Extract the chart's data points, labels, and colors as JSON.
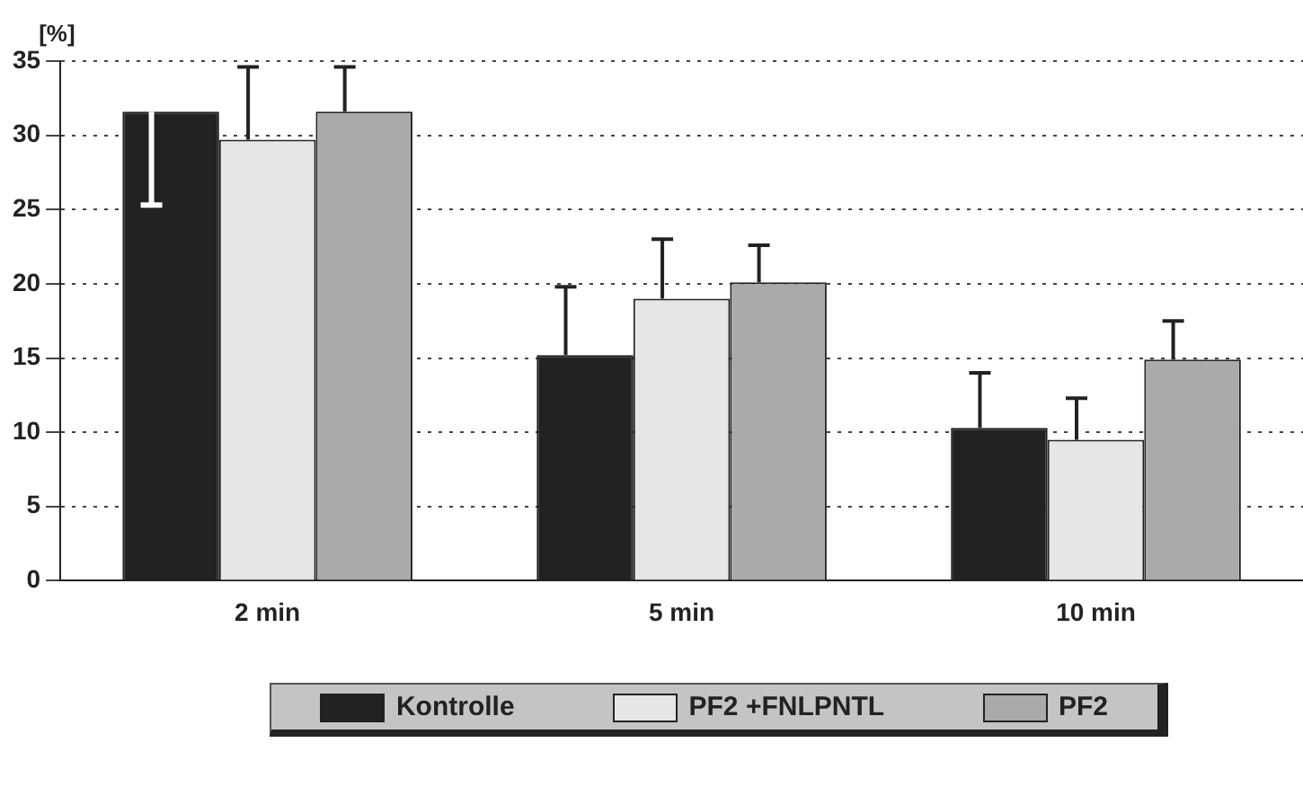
{
  "chart_data": {
    "type": "bar",
    "ylabel": "[%]",
    "categories": [
      "2 min",
      "5 min",
      "10 min"
    ],
    "series": [
      {
        "name": "Kontrolle",
        "color": "#222222",
        "values": [
          31.6,
          15.2,
          10.3
        ],
        "errors": [
          [
            25.3,
            31.6
          ],
          [
            15.2,
            19.8
          ],
          [
            10.3,
            14.0
          ]
        ]
      },
      {
        "name": "PF2 +FNLPNTL",
        "color": "#e6e6e6",
        "values": [
          29.7,
          19.0,
          9.5
        ],
        "errors": [
          [
            29.7,
            34.6
          ],
          [
            19.0,
            23.0
          ],
          [
            9.5,
            12.3
          ]
        ]
      },
      {
        "name": "PF2",
        "color": "#aaaaaa",
        "values": [
          31.6,
          20.1,
          14.9
        ],
        "errors": [
          [
            31.6,
            34.6
          ],
          [
            20.1,
            22.6
          ],
          [
            14.9,
            17.5
          ]
        ]
      }
    ],
    "ylim": [
      0,
      35
    ],
    "yticks": [
      0,
      5,
      10,
      15,
      20,
      25,
      30,
      35
    ],
    "grid": "y",
    "legend": "bottom"
  }
}
